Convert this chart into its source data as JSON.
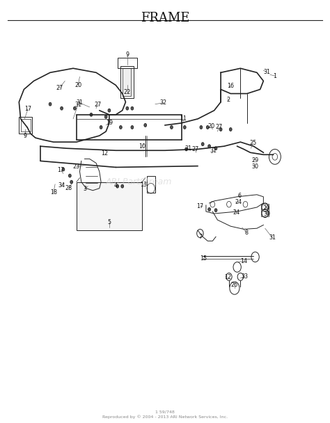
{
  "title": "FRAME",
  "title_fontsize": 13,
  "background_color": "#ffffff",
  "line_color": "#222222",
  "text_color": "#111111",
  "watermark": "ARI PartStream",
  "watermark_color": "#cccccc",
  "footer_line1": "1 59/748",
  "footer_line2": "Reproduced by © 2004 - 2013 ARI Network Services, Inc.",
  "footer_fontsize": 4.5,
  "fig_width": 4.74,
  "fig_height": 6.08,
  "dpi": 100
}
